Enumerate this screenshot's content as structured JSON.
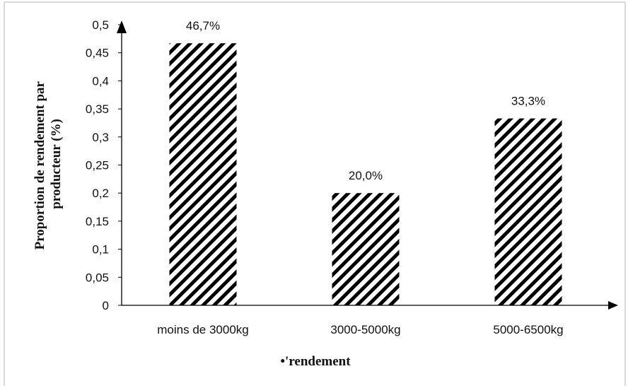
{
  "chart_data": {
    "type": "bar",
    "categories": [
      "moins de 3000kg",
      "3000-5000kg",
      "5000-6500kg"
    ],
    "values": [
      0.467,
      0.2,
      0.333
    ],
    "data_labels": [
      "46,7%",
      "20,0%",
      "33,3%"
    ],
    "xlabel": "•'rendement",
    "ylabel_lines": [
      "Proportion de rendement par",
      "producteur (%)"
    ],
    "ylim": [
      0,
      0.5
    ],
    "yticks": [
      0,
      0.05,
      0.1,
      0.15,
      0.2,
      0.25,
      0.3,
      0.35,
      0.4,
      0.45,
      0.5
    ],
    "ytick_labels": [
      "0",
      "0,05",
      "0,1",
      "0,15",
      "0,2",
      "0,25",
      "0,3",
      "0,35",
      "0,4",
      "0,45",
      "0,5"
    ],
    "bar_fill": "diagonal-hatch",
    "bar_color": "#000000",
    "legend": "none",
    "grid": false
  }
}
